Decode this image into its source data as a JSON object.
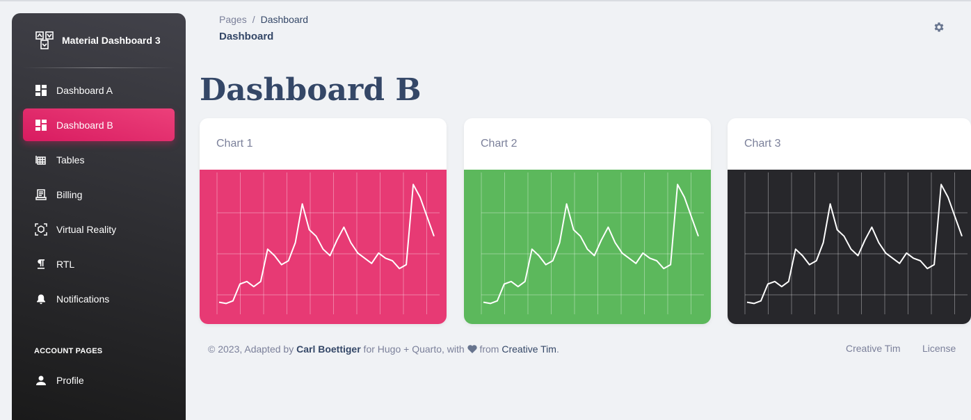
{
  "sidebar": {
    "brand": "Material Dashboard 3",
    "items": [
      {
        "label": "Dashboard A",
        "icon": "dashboard-icon"
      },
      {
        "label": "Dashboard B",
        "icon": "dashboard-icon",
        "active": true
      },
      {
        "label": "Tables",
        "icon": "table-icon"
      },
      {
        "label": "Billing",
        "icon": "receipt-icon"
      },
      {
        "label": "Virtual Reality",
        "icon": "view-in-ar-icon"
      },
      {
        "label": "RTL",
        "icon": "format-textdirection-icon"
      },
      {
        "label": "Notifications",
        "icon": "bell-icon"
      }
    ],
    "section": "ACCOUNT PAGES",
    "profile": {
      "label": "Profile",
      "icon": "person-icon"
    }
  },
  "header": {
    "crumb_root": "Pages",
    "crumb_sep": "/",
    "crumb_current": "Dashboard",
    "title": "Dashboard",
    "settings_icon": "gear-icon"
  },
  "page_title": "Dashboard B",
  "colors": {
    "primary": "#e91e63",
    "card1": "#e73a74",
    "card2": "#5cb85c",
    "card3": "#27272b",
    "text_dark": "#344767",
    "text_muted": "#7b809a"
  },
  "cards": [
    {
      "title": "Chart 1"
    },
    {
      "title": "Chart 2"
    },
    {
      "title": "Chart 3"
    }
  ],
  "chart_data": [
    {
      "type": "line",
      "title": "",
      "xlabel": "",
      "ylabel": "",
      "grid": true
    },
    {
      "type": "line",
      "title": "",
      "xlabel": "",
      "ylabel": "",
      "grid": true
    },
    {
      "type": "line",
      "title": "",
      "xlabel": "",
      "ylabel": "",
      "grid": true
    }
  ],
  "footer": {
    "prefix": "© 2023, Adapted by ",
    "author": "Carl Boettiger",
    "middle": " for Hugo + Quarto, with ",
    "heart_icon": "heart-icon",
    "from": " from ",
    "credit": "Creative Tim",
    "suffix": ".",
    "links": [
      "Creative Tim",
      "License"
    ]
  }
}
